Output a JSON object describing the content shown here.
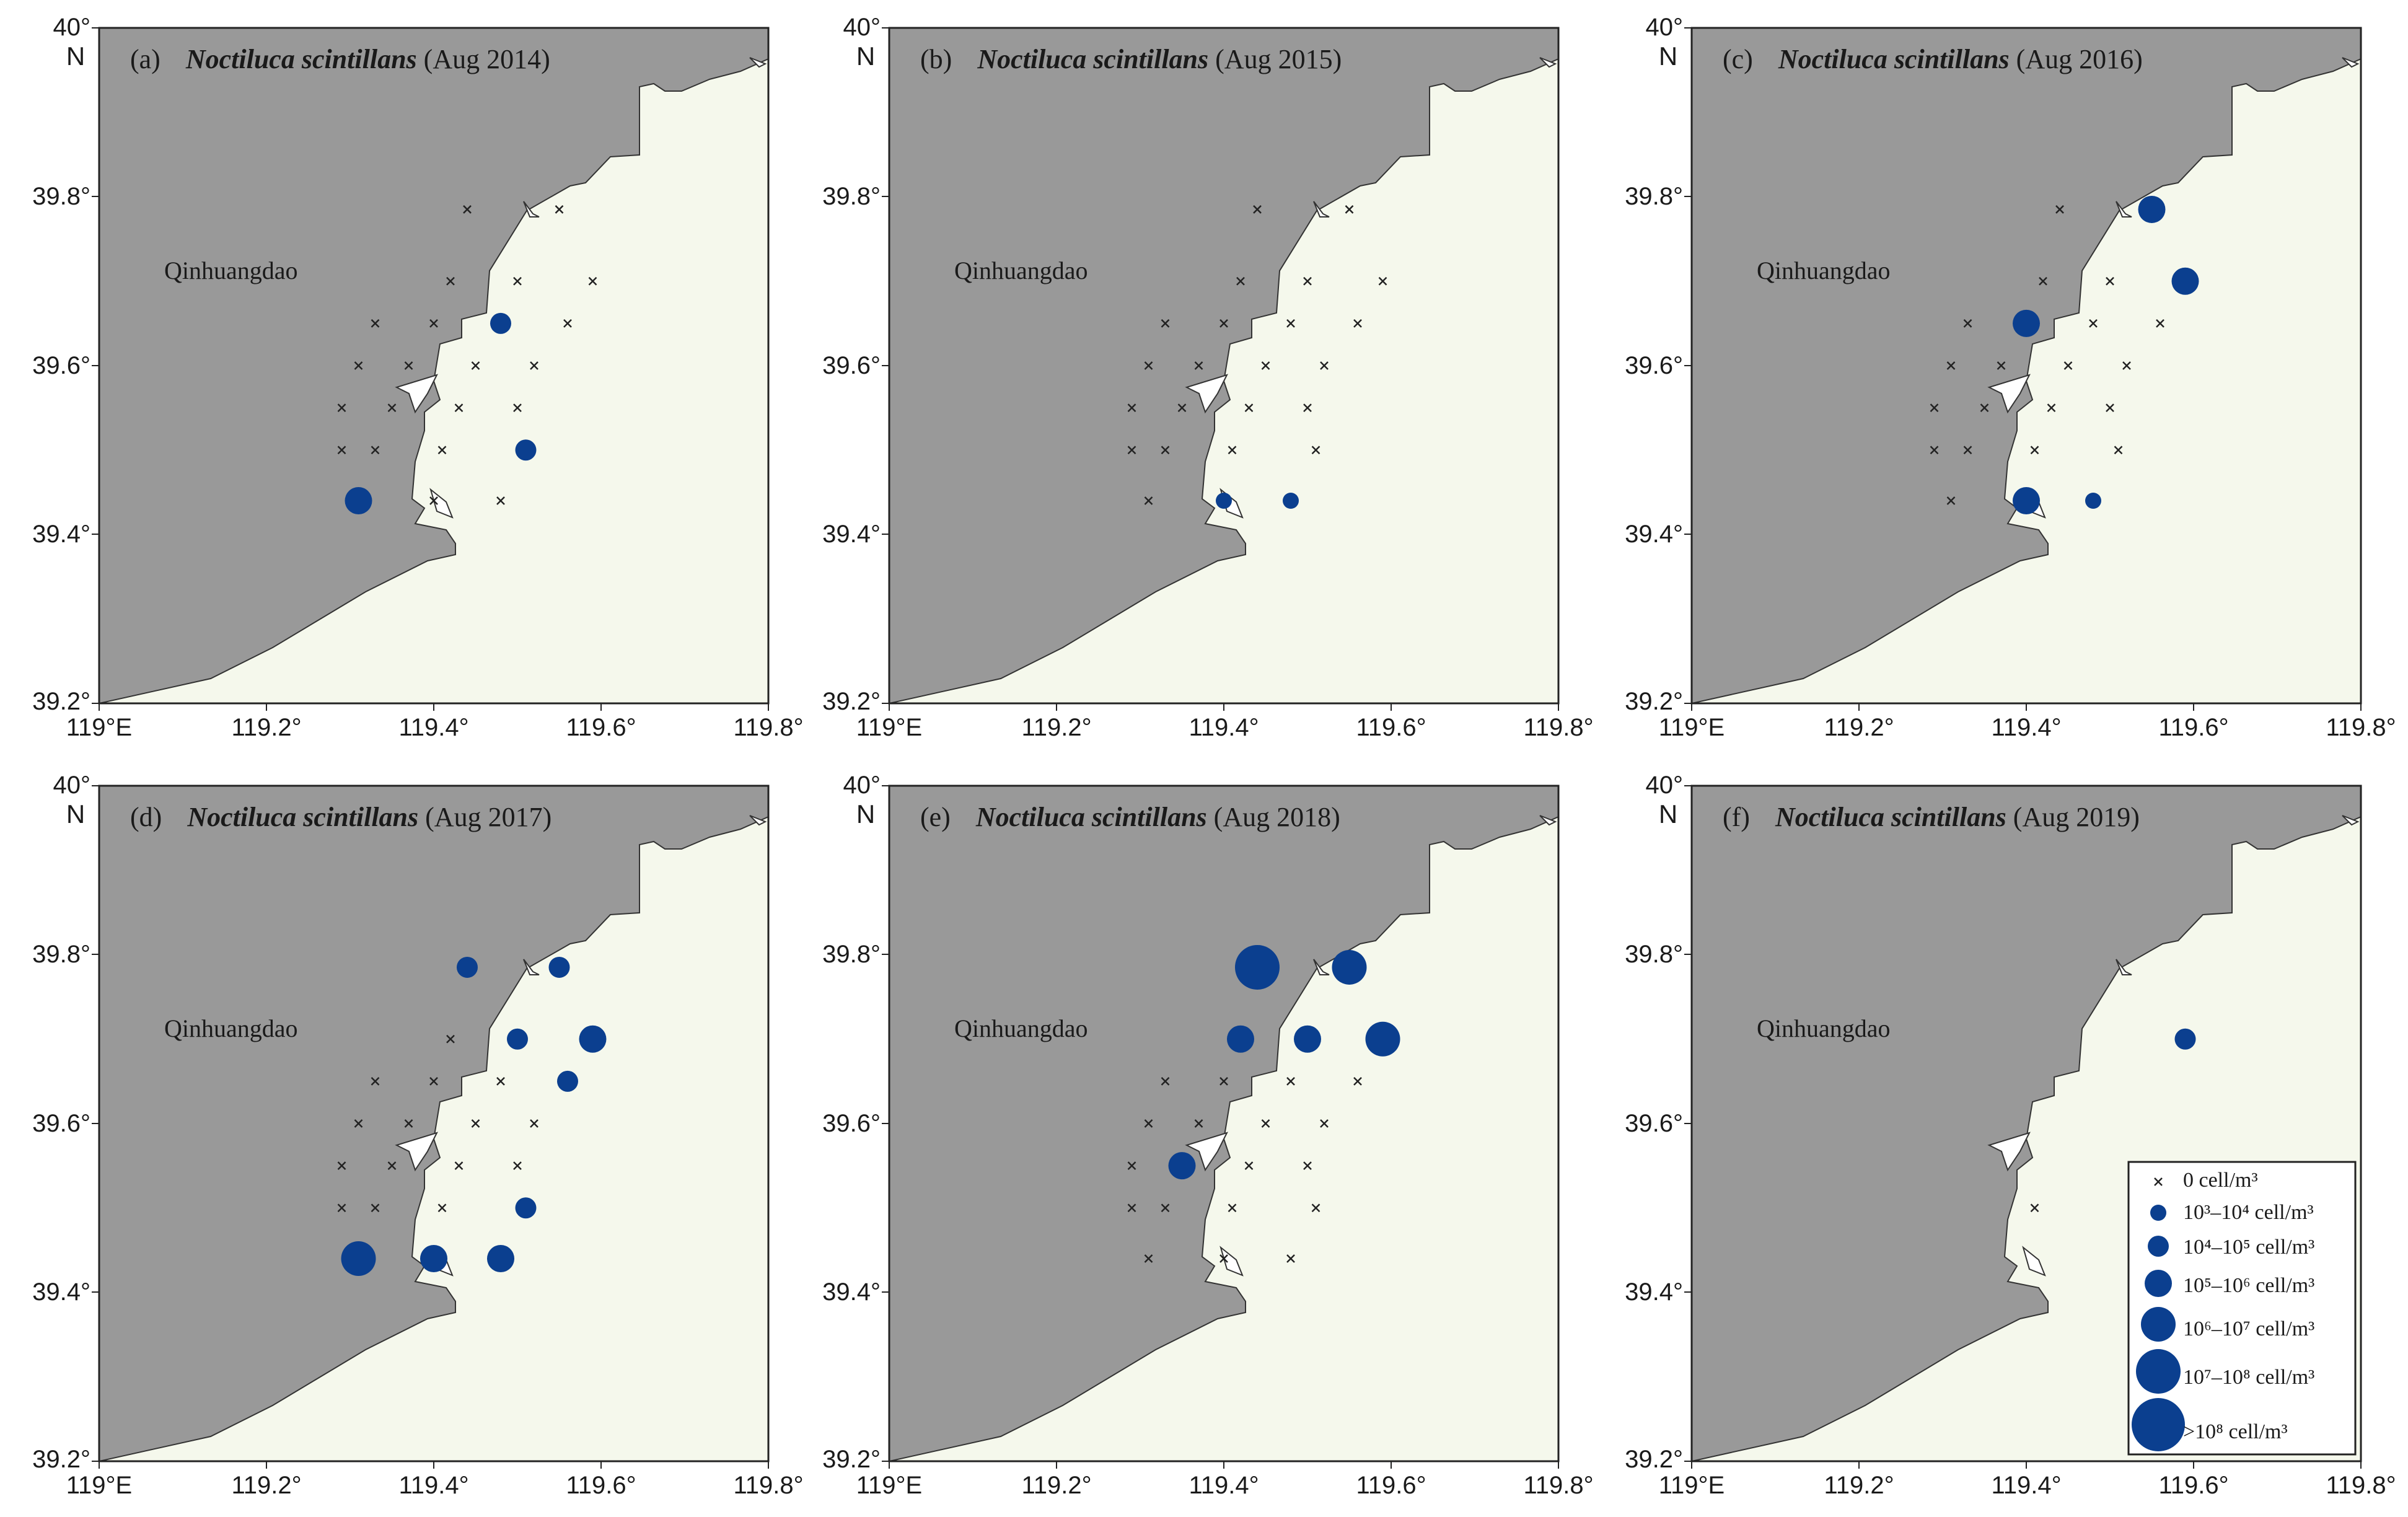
{
  "figure": {
    "place_label": "Qinhuangdao",
    "north_label": "N",
    "lat_labels": [
      "40°",
      "39.8°",
      "39.6°",
      "39.4°",
      "39.2°"
    ],
    "lon_labels": [
      "119°E",
      "119.2°",
      "119.4°",
      "119.6°",
      "119.8°"
    ],
    "colors": {
      "land": "#999999",
      "sea": "#f5f8ec",
      "island": "#ffffff",
      "marker": "#0b3f8f",
      "station": "#222222"
    },
    "legend": {
      "items": [
        {
          "symbol": "cross",
          "size_class": 0,
          "label": "0 cell/m³"
        },
        {
          "symbol": "circle",
          "size_class": 1,
          "label": "10³–10⁴ cell/m³"
        },
        {
          "symbol": "circle",
          "size_class": 2,
          "label": "10⁴–10⁵ cell/m³"
        },
        {
          "symbol": "circle",
          "size_class": 3,
          "label": "10⁵–10⁶ cell/m³"
        },
        {
          "symbol": "circle",
          "size_class": 4,
          "label": "10⁶–10⁷ cell/m³"
        },
        {
          "symbol": "circle",
          "size_class": 5,
          "label": "10⁷–10⁸ cell/m³"
        },
        {
          "symbol": "circle",
          "size_class": 6,
          "label": ">10⁸ cell/m³"
        }
      ]
    }
  },
  "chart_data": {
    "type": "scatter",
    "description_units": "lon (°E), lat (°N); size_class 0 = 0 cell/m³ (cross), 1..6 = abundance classes",
    "axes": {
      "xlim": [
        119.0,
        119.8
      ],
      "ylim": [
        39.2,
        40.0
      ],
      "xticks": [
        119.0,
        119.2,
        119.4,
        119.6,
        119.8
      ],
      "yticks": [
        39.2,
        39.4,
        39.6,
        39.8,
        40.0
      ]
    },
    "panels": [
      {
        "letter": "(a)",
        "species": "Noctiluca scintillans",
        "period": "(Aug 2014)",
        "stations": [
          {
            "lon": 119.44,
            "lat": 39.785,
            "c": 0
          },
          {
            "lon": 119.55,
            "lat": 39.785,
            "c": 0
          },
          {
            "lon": 119.42,
            "lat": 39.7,
            "c": 0
          },
          {
            "lon": 119.5,
            "lat": 39.7,
            "c": 0
          },
          {
            "lon": 119.59,
            "lat": 39.7,
            "c": 0
          },
          {
            "lon": 119.33,
            "lat": 39.65,
            "c": 0
          },
          {
            "lon": 119.4,
            "lat": 39.65,
            "c": 0
          },
          {
            "lon": 119.48,
            "lat": 39.65,
            "c": 2
          },
          {
            "lon": 119.56,
            "lat": 39.65,
            "c": 0
          },
          {
            "lon": 119.31,
            "lat": 39.6,
            "c": 0
          },
          {
            "lon": 119.37,
            "lat": 39.6,
            "c": 0
          },
          {
            "lon": 119.45,
            "lat": 39.6,
            "c": 0
          },
          {
            "lon": 119.52,
            "lat": 39.6,
            "c": 0
          },
          {
            "lon": 119.29,
            "lat": 39.55,
            "c": 0
          },
          {
            "lon": 119.35,
            "lat": 39.55,
            "c": 0
          },
          {
            "lon": 119.43,
            "lat": 39.55,
            "c": 0
          },
          {
            "lon": 119.5,
            "lat": 39.55,
            "c": 0
          },
          {
            "lon": 119.29,
            "lat": 39.5,
            "c": 0
          },
          {
            "lon": 119.33,
            "lat": 39.5,
            "c": 0
          },
          {
            "lon": 119.41,
            "lat": 39.5,
            "c": 0
          },
          {
            "lon": 119.51,
            "lat": 39.5,
            "c": 2
          },
          {
            "lon": 119.31,
            "lat": 39.44,
            "c": 3
          },
          {
            "lon": 119.4,
            "lat": 39.44,
            "c": 0
          },
          {
            "lon": 119.48,
            "lat": 39.44,
            "c": 0
          }
        ]
      },
      {
        "letter": "(b)",
        "species": "Noctiluca scintillans",
        "period": "(Aug 2015)",
        "stations": [
          {
            "lon": 119.44,
            "lat": 39.785,
            "c": 0
          },
          {
            "lon": 119.55,
            "lat": 39.785,
            "c": 0
          },
          {
            "lon": 119.42,
            "lat": 39.7,
            "c": 0
          },
          {
            "lon": 119.5,
            "lat": 39.7,
            "c": 0
          },
          {
            "lon": 119.59,
            "lat": 39.7,
            "c": 0
          },
          {
            "lon": 119.33,
            "lat": 39.65,
            "c": 0
          },
          {
            "lon": 119.4,
            "lat": 39.65,
            "c": 0
          },
          {
            "lon": 119.48,
            "lat": 39.65,
            "c": 0
          },
          {
            "lon": 119.56,
            "lat": 39.65,
            "c": 0
          },
          {
            "lon": 119.31,
            "lat": 39.6,
            "c": 0
          },
          {
            "lon": 119.37,
            "lat": 39.6,
            "c": 0
          },
          {
            "lon": 119.45,
            "lat": 39.6,
            "c": 0
          },
          {
            "lon": 119.52,
            "lat": 39.6,
            "c": 0
          },
          {
            "lon": 119.29,
            "lat": 39.55,
            "c": 0
          },
          {
            "lon": 119.35,
            "lat": 39.55,
            "c": 0
          },
          {
            "lon": 119.43,
            "lat": 39.55,
            "c": 0
          },
          {
            "lon": 119.5,
            "lat": 39.55,
            "c": 0
          },
          {
            "lon": 119.29,
            "lat": 39.5,
            "c": 0
          },
          {
            "lon": 119.33,
            "lat": 39.5,
            "c": 0
          },
          {
            "lon": 119.41,
            "lat": 39.5,
            "c": 0
          },
          {
            "lon": 119.51,
            "lat": 39.5,
            "c": 0
          },
          {
            "lon": 119.31,
            "lat": 39.44,
            "c": 0
          },
          {
            "lon": 119.4,
            "lat": 39.44,
            "c": 1
          },
          {
            "lon": 119.48,
            "lat": 39.44,
            "c": 1
          }
        ]
      },
      {
        "letter": "(c)",
        "species": "Noctiluca scintillans",
        "period": "(Aug 2016)",
        "stations": [
          {
            "lon": 119.44,
            "lat": 39.785,
            "c": 0
          },
          {
            "lon": 119.55,
            "lat": 39.785,
            "c": 3
          },
          {
            "lon": 119.42,
            "lat": 39.7,
            "c": 0
          },
          {
            "lon": 119.5,
            "lat": 39.7,
            "c": 0
          },
          {
            "lon": 119.59,
            "lat": 39.7,
            "c": 3
          },
          {
            "lon": 119.33,
            "lat": 39.65,
            "c": 0
          },
          {
            "lon": 119.4,
            "lat": 39.65,
            "c": 3
          },
          {
            "lon": 119.48,
            "lat": 39.65,
            "c": 0
          },
          {
            "lon": 119.56,
            "lat": 39.65,
            "c": 0
          },
          {
            "lon": 119.31,
            "lat": 39.6,
            "c": 0
          },
          {
            "lon": 119.37,
            "lat": 39.6,
            "c": 0
          },
          {
            "lon": 119.45,
            "lat": 39.6,
            "c": 0
          },
          {
            "lon": 119.52,
            "lat": 39.6,
            "c": 0
          },
          {
            "lon": 119.29,
            "lat": 39.55,
            "c": 0
          },
          {
            "lon": 119.35,
            "lat": 39.55,
            "c": 0
          },
          {
            "lon": 119.43,
            "lat": 39.55,
            "c": 0
          },
          {
            "lon": 119.5,
            "lat": 39.55,
            "c": 0
          },
          {
            "lon": 119.29,
            "lat": 39.5,
            "c": 0
          },
          {
            "lon": 119.33,
            "lat": 39.5,
            "c": 0
          },
          {
            "lon": 119.41,
            "lat": 39.5,
            "c": 0
          },
          {
            "lon": 119.51,
            "lat": 39.5,
            "c": 0
          },
          {
            "lon": 119.31,
            "lat": 39.44,
            "c": 0
          },
          {
            "lon": 119.4,
            "lat": 39.44,
            "c": 3
          },
          {
            "lon": 119.48,
            "lat": 39.44,
            "c": 1
          }
        ]
      },
      {
        "letter": "(d)",
        "species": "Noctiluca scintillans",
        "period": "(Aug 2017)",
        "stations": [
          {
            "lon": 119.44,
            "lat": 39.785,
            "c": 2
          },
          {
            "lon": 119.55,
            "lat": 39.785,
            "c": 2
          },
          {
            "lon": 119.42,
            "lat": 39.7,
            "c": 0
          },
          {
            "lon": 119.5,
            "lat": 39.7,
            "c": 2
          },
          {
            "lon": 119.59,
            "lat": 39.7,
            "c": 3
          },
          {
            "lon": 119.33,
            "lat": 39.65,
            "c": 0
          },
          {
            "lon": 119.4,
            "lat": 39.65,
            "c": 0
          },
          {
            "lon": 119.48,
            "lat": 39.65,
            "c": 0
          },
          {
            "lon": 119.56,
            "lat": 39.65,
            "c": 2
          },
          {
            "lon": 119.31,
            "lat": 39.6,
            "c": 0
          },
          {
            "lon": 119.37,
            "lat": 39.6,
            "c": 0
          },
          {
            "lon": 119.45,
            "lat": 39.6,
            "c": 0
          },
          {
            "lon": 119.52,
            "lat": 39.6,
            "c": 0
          },
          {
            "lon": 119.29,
            "lat": 39.55,
            "c": 0
          },
          {
            "lon": 119.35,
            "lat": 39.55,
            "c": 0
          },
          {
            "lon": 119.43,
            "lat": 39.55,
            "c": 0
          },
          {
            "lon": 119.5,
            "lat": 39.55,
            "c": 0
          },
          {
            "lon": 119.29,
            "lat": 39.5,
            "c": 0
          },
          {
            "lon": 119.33,
            "lat": 39.5,
            "c": 0
          },
          {
            "lon": 119.41,
            "lat": 39.5,
            "c": 0
          },
          {
            "lon": 119.51,
            "lat": 39.5,
            "c": 2
          },
          {
            "lon": 119.31,
            "lat": 39.44,
            "c": 4
          },
          {
            "lon": 119.4,
            "lat": 39.44,
            "c": 3
          },
          {
            "lon": 119.48,
            "lat": 39.44,
            "c": 3
          }
        ]
      },
      {
        "letter": "(e)",
        "species": "Noctiluca scintillans",
        "period": "(Aug 2018)",
        "stations": [
          {
            "lon": 119.44,
            "lat": 39.785,
            "c": 5
          },
          {
            "lon": 119.55,
            "lat": 39.785,
            "c": 4
          },
          {
            "lon": 119.42,
            "lat": 39.7,
            "c": 3
          },
          {
            "lon": 119.5,
            "lat": 39.7,
            "c": 3
          },
          {
            "lon": 119.59,
            "lat": 39.7,
            "c": 4
          },
          {
            "lon": 119.33,
            "lat": 39.65,
            "c": 0
          },
          {
            "lon": 119.4,
            "lat": 39.65,
            "c": 0
          },
          {
            "lon": 119.48,
            "lat": 39.65,
            "c": 0
          },
          {
            "lon": 119.56,
            "lat": 39.65,
            "c": 0
          },
          {
            "lon": 119.31,
            "lat": 39.6,
            "c": 0
          },
          {
            "lon": 119.37,
            "lat": 39.6,
            "c": 0
          },
          {
            "lon": 119.45,
            "lat": 39.6,
            "c": 0
          },
          {
            "lon": 119.52,
            "lat": 39.6,
            "c": 0
          },
          {
            "lon": 119.29,
            "lat": 39.55,
            "c": 0
          },
          {
            "lon": 119.35,
            "lat": 39.55,
            "c": 3
          },
          {
            "lon": 119.43,
            "lat": 39.55,
            "c": 0
          },
          {
            "lon": 119.5,
            "lat": 39.55,
            "c": 0
          },
          {
            "lon": 119.29,
            "lat": 39.5,
            "c": 0
          },
          {
            "lon": 119.33,
            "lat": 39.5,
            "c": 0
          },
          {
            "lon": 119.41,
            "lat": 39.5,
            "c": 0
          },
          {
            "lon": 119.51,
            "lat": 39.5,
            "c": 0
          },
          {
            "lon": 119.31,
            "lat": 39.44,
            "c": 0
          },
          {
            "lon": 119.4,
            "lat": 39.44,
            "c": 0
          },
          {
            "lon": 119.48,
            "lat": 39.44,
            "c": 0
          }
        ]
      },
      {
        "letter": "(f)",
        "species": "Noctiluca scintillans",
        "period": "(Aug 2019)",
        "stations": [
          {
            "lon": 119.59,
            "lat": 39.7,
            "c": 2
          },
          {
            "lon": 119.41,
            "lat": 39.5,
            "c": 0
          }
        ]
      }
    ]
  }
}
